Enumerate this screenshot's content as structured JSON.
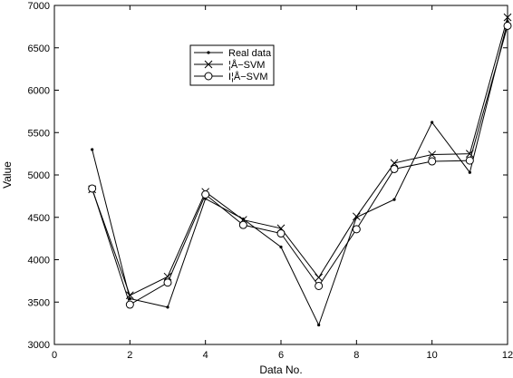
{
  "chart_data": {
    "type": "line",
    "xlabel": "Data No.",
    "ylabel": "Value",
    "xlim": [
      0,
      12
    ],
    "ylim": [
      3000,
      7000
    ],
    "xticks": [
      0,
      2,
      4,
      6,
      8,
      10,
      12
    ],
    "yticks": [
      3000,
      3500,
      4000,
      4500,
      5000,
      5500,
      6000,
      6500,
      7000
    ],
    "grid": false,
    "legend_position": "upper-left-center",
    "x": [
      1,
      2,
      3,
      4,
      5,
      6,
      7,
      8,
      9,
      10,
      11,
      12
    ],
    "series": [
      {
        "name": "Real data",
        "marker": "dot",
        "values": [
          5300,
          3540,
          3440,
          4720,
          4480,
          4150,
          3230,
          4500,
          4710,
          5620,
          5030,
          6810
        ]
      },
      {
        "name": "¦Å−SVM",
        "marker": "x",
        "values": [
          4830,
          3580,
          3800,
          4800,
          4470,
          4370,
          3790,
          4510,
          5140,
          5240,
          5250,
          6860
        ]
      },
      {
        "name": "I¦Å−SVM",
        "marker": "circle",
        "values": [
          4840,
          3470,
          3730,
          4770,
          4410,
          4310,
          3690,
          4360,
          5070,
          5160,
          5170,
          6760
        ]
      }
    ]
  }
}
